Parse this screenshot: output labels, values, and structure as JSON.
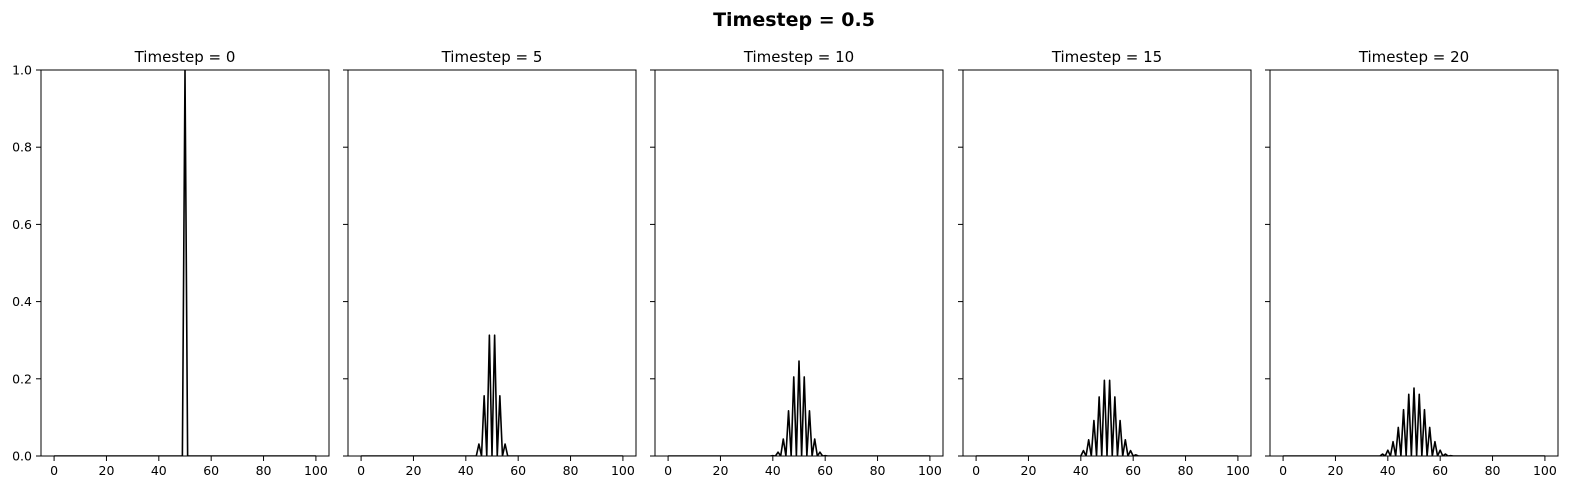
{
  "figure": {
    "title": "Timestep = 0.5"
  },
  "chart_data": [
    {
      "type": "line",
      "title": "Timestep = 0",
      "xlim": [
        -5,
        105
      ],
      "ylim": [
        0,
        1
      ],
      "xticks": [
        0,
        20,
        40,
        60,
        80,
        100
      ],
      "yticks": [
        0.0,
        0.2,
        0.4,
        0.6,
        0.8,
        1.0
      ],
      "ytick_labels_shown": true,
      "series": [
        {
          "color": "#000000",
          "x": [
            0,
            49,
            50,
            51,
            100
          ],
          "y": [
            0,
            0,
            1.0,
            0,
            0
          ]
        }
      ]
    },
    {
      "type": "line",
      "title": "Timestep = 5",
      "xlim": [
        -5,
        105
      ],
      "ylim": [
        0,
        1
      ],
      "xticks": [
        0,
        20,
        40,
        60,
        80,
        100
      ],
      "yticks": [
        0.0,
        0.2,
        0.4,
        0.6,
        0.8,
        1.0
      ],
      "ytick_labels_shown": false,
      "series": [
        {
          "color": "#000000",
          "x": [
            0,
            44,
            45,
            46,
            47,
            48,
            49,
            50,
            51,
            52,
            53,
            54,
            55,
            56,
            100
          ],
          "y": [
            0,
            0,
            0.031,
            0,
            0.156,
            0,
            0.313,
            0,
            0.313,
            0,
            0.156,
            0,
            0.031,
            0,
            0
          ]
        }
      ]
    },
    {
      "type": "line",
      "title": "Timestep = 10",
      "xlim": [
        -5,
        105
      ],
      "ylim": [
        0,
        1
      ],
      "xticks": [
        0,
        20,
        40,
        60,
        80,
        100
      ],
      "yticks": [
        0.0,
        0.2,
        0.4,
        0.6,
        0.8,
        1.0
      ],
      "ytick_labels_shown": false,
      "series": [
        {
          "color": "#000000",
          "x": [
            0,
            39,
            40,
            41,
            42,
            43,
            44,
            45,
            46,
            47,
            48,
            49,
            50,
            51,
            52,
            53,
            54,
            55,
            56,
            57,
            58,
            59,
            60,
            61,
            100
          ],
          "y": [
            0,
            0,
            0.001,
            0,
            0.01,
            0,
            0.044,
            0,
            0.117,
            0,
            0.205,
            0,
            0.246,
            0,
            0.205,
            0,
            0.117,
            0,
            0.044,
            0,
            0.01,
            0,
            0.001,
            0,
            0
          ]
        }
      ]
    },
    {
      "type": "line",
      "title": "Timestep = 15",
      "xlim": [
        -5,
        105
      ],
      "ylim": [
        0,
        1
      ],
      "xticks": [
        0,
        20,
        40,
        60,
        80,
        100
      ],
      "yticks": [
        0.0,
        0.2,
        0.4,
        0.6,
        0.8,
        1.0
      ],
      "ytick_labels_shown": false,
      "series": [
        {
          "color": "#000000",
          "x": [
            0,
            34,
            35,
            36,
            37,
            38,
            39,
            40,
            41,
            42,
            43,
            44,
            45,
            46,
            47,
            48,
            49,
            50,
            51,
            52,
            53,
            54,
            55,
            56,
            57,
            58,
            59,
            60,
            61,
            62,
            63,
            64,
            65,
            66,
            100
          ],
          "y": [
            0,
            0,
            0.0,
            0,
            0.0,
            0,
            0.0,
            0,
            0.014,
            0,
            0.042,
            0,
            0.092,
            0,
            0.153,
            0,
            0.196,
            0,
            0.196,
            0,
            0.153,
            0,
            0.092,
            0,
            0.042,
            0,
            0.014,
            0,
            0.003,
            0,
            0.0,
            0,
            0.0,
            0,
            0
          ]
        }
      ]
    },
    {
      "type": "line",
      "title": "Timestep = 20",
      "xlim": [
        -5,
        105
      ],
      "ylim": [
        0,
        1
      ],
      "xticks": [
        0,
        20,
        40,
        60,
        80,
        100
      ],
      "yticks": [
        0.0,
        0.2,
        0.4,
        0.6,
        0.8,
        1.0
      ],
      "ytick_labels_shown": false,
      "series": [
        {
          "color": "#000000",
          "x": [
            0,
            29,
            30,
            31,
            32,
            33,
            34,
            35,
            36,
            37,
            38,
            39,
            40,
            41,
            42,
            43,
            44,
            45,
            46,
            47,
            48,
            49,
            50,
            51,
            52,
            53,
            54,
            55,
            56,
            57,
            58,
            59,
            60,
            61,
            62,
            63,
            64,
            65,
            66,
            67,
            68,
            69,
            70,
            71,
            100
          ],
          "y": [
            0,
            0,
            0.0,
            0,
            0.0,
            0,
            0.0,
            0,
            0.0,
            0,
            0.005,
            0,
            0.015,
            0,
            0.037,
            0,
            0.074,
            0,
            0.12,
            0,
            0.16,
            0,
            0.176,
            0,
            0.16,
            0,
            0.12,
            0,
            0.074,
            0,
            0.037,
            0,
            0.015,
            0,
            0.005,
            0,
            0.001,
            0,
            0.0,
            0,
            0.0,
            0,
            0.0,
            0,
            0
          ]
        }
      ]
    }
  ]
}
